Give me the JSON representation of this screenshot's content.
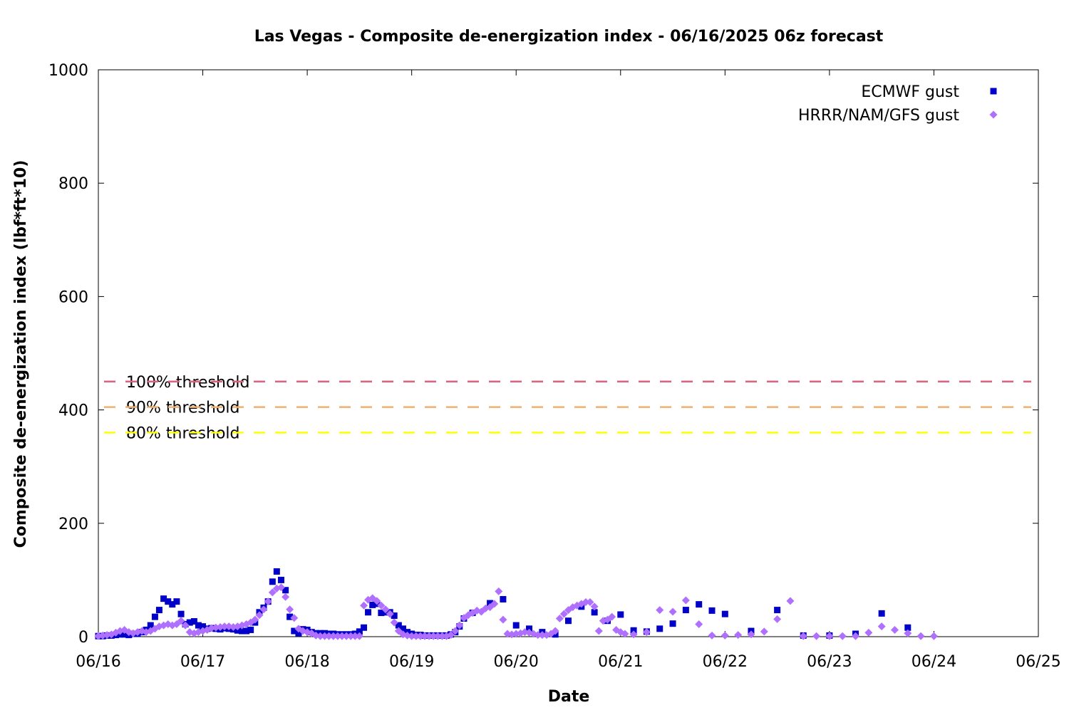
{
  "chart_data": {
    "type": "scatter",
    "title": "Las Vegas - Composite de-energization index - 06/16/2025 06z forecast",
    "xlabel": "Date",
    "ylabel": "Composite de-energization index (lbf*ft*10)",
    "x_ticks": [
      "06/16",
      "06/17",
      "06/18",
      "06/19",
      "06/20",
      "06/21",
      "06/22",
      "06/23",
      "06/24",
      "06/25"
    ],
    "xlim": [
      0,
      9
    ],
    "x_unit": "days from 06/16 00z",
    "y_ticks": [
      "0",
      "200",
      "400",
      "600",
      "800",
      "1000"
    ],
    "ylim": [
      0,
      1000
    ],
    "grid": false,
    "legend_position": "top-right",
    "thresholds": [
      {
        "label": "100% threshold",
        "value": 450,
        "color": "#e0607e"
      },
      {
        "label": "90% threshold",
        "value": 405,
        "color": "#f0b070"
      },
      {
        "label": "80% threshold",
        "value": 360,
        "color": "#ffff00"
      }
    ],
    "series": [
      {
        "name": "ECMWF gust",
        "marker": "square",
        "color": "#0000c8",
        "points": [
          [
            0,
            1
          ],
          [
            0.042,
            1
          ],
          [
            0.083,
            2
          ],
          [
            0.125,
            2
          ],
          [
            0.167,
            3
          ],
          [
            0.208,
            4
          ],
          [
            0.25,
            4
          ],
          [
            0.292,
            3
          ],
          [
            0.333,
            5
          ],
          [
            0.375,
            5
          ],
          [
            0.417,
            8
          ],
          [
            0.458,
            12
          ],
          [
            0.5,
            20
          ],
          [
            0.542,
            35
          ],
          [
            0.583,
            47
          ],
          [
            0.625,
            67
          ],
          [
            0.667,
            62
          ],
          [
            0.708,
            57
          ],
          [
            0.75,
            62
          ],
          [
            0.792,
            40
          ],
          [
            0.833,
            22
          ],
          [
            0.875,
            25
          ],
          [
            0.917,
            27
          ],
          [
            0.958,
            20
          ],
          [
            1.0,
            18
          ],
          [
            1.042,
            14
          ],
          [
            1.083,
            15
          ],
          [
            1.125,
            14
          ],
          [
            1.167,
            13
          ],
          [
            1.208,
            15
          ],
          [
            1.25,
            14
          ],
          [
            1.292,
            13
          ],
          [
            1.333,
            11
          ],
          [
            1.375,
            10
          ],
          [
            1.417,
            10
          ],
          [
            1.458,
            12
          ],
          [
            1.5,
            25
          ],
          [
            1.542,
            43
          ],
          [
            1.583,
            51
          ],
          [
            1.625,
            62
          ],
          [
            1.667,
            97
          ],
          [
            1.708,
            115
          ],
          [
            1.75,
            100
          ],
          [
            1.792,
            82
          ],
          [
            1.833,
            35
          ],
          [
            1.875,
            10
          ],
          [
            1.917,
            6
          ],
          [
            1.958,
            13
          ],
          [
            2.0,
            12
          ],
          [
            2.042,
            8
          ],
          [
            2.083,
            6
          ],
          [
            2.125,
            6
          ],
          [
            2.167,
            6
          ],
          [
            2.208,
            5
          ],
          [
            2.25,
            5
          ],
          [
            2.292,
            4
          ],
          [
            2.333,
            4
          ],
          [
            2.375,
            4
          ],
          [
            2.417,
            4
          ],
          [
            2.458,
            5
          ],
          [
            2.5,
            9
          ],
          [
            2.542,
            16
          ],
          [
            2.583,
            43
          ],
          [
            2.625,
            56
          ],
          [
            2.667,
            58
          ],
          [
            2.708,
            42
          ],
          [
            2.75,
            43
          ],
          [
            2.792,
            43
          ],
          [
            2.833,
            37
          ],
          [
            2.875,
            20
          ],
          [
            2.917,
            14
          ],
          [
            2.958,
            8
          ],
          [
            3.0,
            5
          ],
          [
            3.042,
            3
          ],
          [
            3.083,
            3
          ],
          [
            3.125,
            2
          ],
          [
            3.167,
            2
          ],
          [
            3.208,
            2
          ],
          [
            3.25,
            2
          ],
          [
            3.292,
            2
          ],
          [
            3.333,
            2
          ],
          [
            3.375,
            4
          ],
          [
            3.417,
            8
          ],
          [
            3.458,
            18
          ],
          [
            3.5,
            32
          ],
          [
            3.583,
            42
          ],
          [
            3.75,
            59
          ],
          [
            3.875,
            66
          ],
          [
            4.0,
            20
          ],
          [
            4.125,
            14
          ],
          [
            4.25,
            8
          ],
          [
            4.375,
            4
          ],
          [
            4.5,
            28
          ],
          [
            4.625,
            53
          ],
          [
            4.75,
            43
          ],
          [
            4.875,
            28
          ],
          [
            5.0,
            39
          ],
          [
            5.125,
            11
          ],
          [
            5.25,
            9
          ],
          [
            5.375,
            14
          ],
          [
            5.5,
            23
          ],
          [
            5.625,
            47
          ],
          [
            5.75,
            57
          ],
          [
            5.875,
            46
          ],
          [
            6.0,
            40
          ],
          [
            6.25,
            10
          ],
          [
            6.5,
            47
          ],
          [
            6.75,
            2
          ],
          [
            7.0,
            2
          ],
          [
            7.25,
            5
          ],
          [
            7.5,
            41
          ],
          [
            7.75,
            16
          ]
        ]
      },
      {
        "name": "HRRR/NAM/GFS gust",
        "marker": "diamond",
        "color": "#b070ff",
        "points": [
          [
            0,
            1
          ],
          [
            0.042,
            2
          ],
          [
            0.083,
            3
          ],
          [
            0.125,
            4
          ],
          [
            0.167,
            7
          ],
          [
            0.208,
            10
          ],
          [
            0.25,
            12
          ],
          [
            0.292,
            8
          ],
          [
            0.333,
            6
          ],
          [
            0.375,
            8
          ],
          [
            0.417,
            10
          ],
          [
            0.458,
            8
          ],
          [
            0.5,
            10
          ],
          [
            0.542,
            14
          ],
          [
            0.583,
            18
          ],
          [
            0.625,
            20
          ],
          [
            0.667,
            22
          ],
          [
            0.708,
            20
          ],
          [
            0.75,
            22
          ],
          [
            0.792,
            28
          ],
          [
            0.833,
            20
          ],
          [
            0.875,
            8
          ],
          [
            0.917,
            6
          ],
          [
            0.958,
            8
          ],
          [
            1.0,
            10
          ],
          [
            1.042,
            12
          ],
          [
            1.083,
            15
          ],
          [
            1.125,
            16
          ],
          [
            1.167,
            17
          ],
          [
            1.208,
            18
          ],
          [
            1.25,
            18
          ],
          [
            1.292,
            17
          ],
          [
            1.333,
            18
          ],
          [
            1.375,
            20
          ],
          [
            1.417,
            22
          ],
          [
            1.458,
            25
          ],
          [
            1.5,
            30
          ],
          [
            1.542,
            38
          ],
          [
            1.583,
            48
          ],
          [
            1.625,
            62
          ],
          [
            1.667,
            78
          ],
          [
            1.708,
            85
          ],
          [
            1.75,
            87
          ],
          [
            1.792,
            70
          ],
          [
            1.833,
            48
          ],
          [
            1.875,
            33
          ],
          [
            1.917,
            14
          ],
          [
            1.958,
            10
          ],
          [
            2.0,
            8
          ],
          [
            2.042,
            6
          ],
          [
            2.083,
            2
          ],
          [
            2.125,
            1
          ],
          [
            2.167,
            1
          ],
          [
            2.208,
            1
          ],
          [
            2.25,
            1
          ],
          [
            2.292,
            1
          ],
          [
            2.333,
            1
          ],
          [
            2.375,
            1
          ],
          [
            2.417,
            1
          ],
          [
            2.458,
            1
          ],
          [
            2.5,
            1
          ],
          [
            2.542,
            55
          ],
          [
            2.583,
            65
          ],
          [
            2.625,
            68
          ],
          [
            2.667,
            63
          ],
          [
            2.708,
            55
          ],
          [
            2.75,
            48
          ],
          [
            2.792,
            40
          ],
          [
            2.833,
            25
          ],
          [
            2.875,
            10
          ],
          [
            2.917,
            4
          ],
          [
            2.958,
            2
          ],
          [
            3.0,
            1
          ],
          [
            3.042,
            1
          ],
          [
            3.083,
            1
          ],
          [
            3.125,
            1
          ],
          [
            3.167,
            1
          ],
          [
            3.208,
            1
          ],
          [
            3.25,
            1
          ],
          [
            3.292,
            1
          ],
          [
            3.333,
            1
          ],
          [
            3.375,
            3
          ],
          [
            3.417,
            10
          ],
          [
            3.458,
            20
          ],
          [
            3.5,
            33
          ],
          [
            3.542,
            38
          ],
          [
            3.583,
            42
          ],
          [
            3.625,
            46
          ],
          [
            3.667,
            44
          ],
          [
            3.708,
            50
          ],
          [
            3.75,
            52
          ],
          [
            3.792,
            58
          ],
          [
            3.833,
            80
          ],
          [
            3.875,
            30
          ],
          [
            3.917,
            5
          ],
          [
            3.958,
            4
          ],
          [
            4.0,
            5
          ],
          [
            4.042,
            6
          ],
          [
            4.083,
            8
          ],
          [
            4.125,
            7
          ],
          [
            4.167,
            5
          ],
          [
            4.208,
            3
          ],
          [
            4.25,
            3
          ],
          [
            4.292,
            3
          ],
          [
            4.333,
            5
          ],
          [
            4.375,
            10
          ],
          [
            4.417,
            32
          ],
          [
            4.458,
            40
          ],
          [
            4.5,
            47
          ],
          [
            4.542,
            52
          ],
          [
            4.583,
            55
          ],
          [
            4.625,
            58
          ],
          [
            4.667,
            61
          ],
          [
            4.708,
            61
          ],
          [
            4.75,
            53
          ],
          [
            4.792,
            10
          ],
          [
            4.833,
            28
          ],
          [
            4.875,
            30
          ],
          [
            4.917,
            35
          ],
          [
            4.958,
            12
          ],
          [
            5.0,
            8
          ],
          [
            5.042,
            5
          ],
          [
            5.125,
            4
          ],
          [
            5.25,
            8
          ],
          [
            5.375,
            47
          ],
          [
            5.5,
            44
          ],
          [
            5.625,
            64
          ],
          [
            5.75,
            22
          ],
          [
            5.875,
            2
          ],
          [
            6.0,
            2
          ],
          [
            6.125,
            3
          ],
          [
            6.25,
            4
          ],
          [
            6.375,
            9
          ],
          [
            6.5,
            31
          ],
          [
            6.625,
            63
          ],
          [
            6.75,
            1
          ],
          [
            6.875,
            1
          ],
          [
            7.0,
            1
          ],
          [
            7.125,
            1
          ],
          [
            7.25,
            1
          ],
          [
            7.375,
            7
          ],
          [
            7.5,
            18
          ],
          [
            7.625,
            12
          ],
          [
            7.75,
            6
          ],
          [
            7.875,
            1
          ],
          [
            8.0,
            1
          ]
        ]
      }
    ]
  }
}
